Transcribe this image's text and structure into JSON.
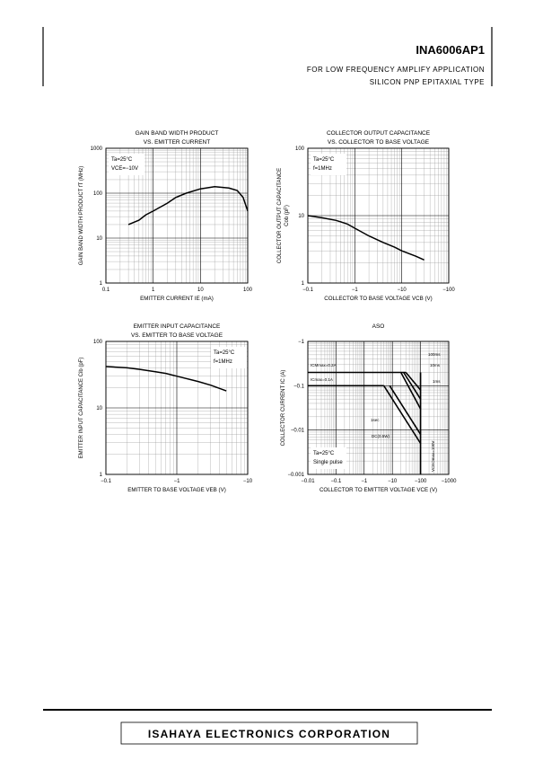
{
  "header": {
    "part_number": "INA6006AP1",
    "line1": "FOR LOW FREQUENCY AMPLIFY APPLICATION",
    "line2": "SILICON PNP EPITAXIAL TYPE"
  },
  "footer": {
    "company": "ISAHAYA ELECTRONICS CORPORATION"
  },
  "chart_data": [
    {
      "type": "line",
      "title": "GAIN BAND WIDTH PRODUCT",
      "subtitle": "VS. EMITTER CURRENT",
      "xlabel": "EMITTER CURRENT  IE (mA)",
      "ylabel": [
        "GAIN BAND WIDTH PRODUCT  fT (MHz)"
      ],
      "xscale": "log",
      "yscale": "log",
      "grid": true,
      "xlim": [
        0.1,
        100
      ],
      "xticks": [
        0.1,
        1,
        10,
        100
      ],
      "ylim": [
        1,
        1000
      ],
      "yticks": [
        1,
        10,
        100,
        1000
      ],
      "annotations": [
        "Ta=25°C",
        "VCE=−10V"
      ],
      "annotation_corner": "top-left",
      "series": [
        {
          "color": "#000000",
          "x": [
            0.3,
            0.5,
            0.7,
            1,
            2,
            3,
            5,
            10,
            20,
            40,
            60,
            80,
            100
          ],
          "values": [
            20,
            25,
            33,
            40,
            60,
            80,
            100,
            125,
            140,
            130,
            115,
            80,
            40
          ]
        }
      ]
    },
    {
      "type": "line",
      "title": "COLLECTOR OUTPUT CAPACITANCE",
      "subtitle": "VS. COLLECTOR TO BASE VOLTAGE",
      "xlabel": "COLLECTOR TO BASE VOLTAGE  VCB (V)",
      "ylabel": [
        "COLLECTOR OUTPUT CAPACITANCE",
        "Cob (pF)"
      ],
      "xscale": "log",
      "yscale": "log",
      "grid": true,
      "xlim": [
        -0.1,
        -100
      ],
      "xticks": [
        {
          "value": -0.1,
          "label": "−0.1"
        },
        {
          "value": -1,
          "label": "−1"
        },
        {
          "value": -10,
          "label": "−10"
        },
        {
          "value": -100,
          "label": "−100"
        }
      ],
      "ylim": [
        1,
        100
      ],
      "yticks": [
        1,
        10,
        100
      ],
      "annotations": [
        "Ta=25°C",
        "f=1MHz"
      ],
      "annotation_corner": "top-left",
      "series": [
        {
          "color": "#000000",
          "x": [
            -0.1,
            -0.2,
            -0.4,
            -0.7,
            -1,
            -2,
            -4,
            -7,
            -10,
            -20,
            -30
          ],
          "values": [
            10,
            9.3,
            8.5,
            7.5,
            6.5,
            5,
            4,
            3.4,
            3,
            2.5,
            2.2
          ]
        }
      ]
    },
    {
      "type": "line",
      "title": "EMITTER INPUT CAPACITANCE",
      "subtitle": "VS. EMITTER TO BASE VOLTAGE",
      "xlabel": "EMITTER TO BASE VOLTAGE  VEB (V)",
      "ylabel": [
        "EMITTER INPUT CAPACITANCE  Cib (pF)"
      ],
      "xscale": "log",
      "yscale": "log",
      "grid": true,
      "xlim": [
        -0.1,
        -10
      ],
      "xticks": [
        {
          "value": -0.1,
          "label": "−0.1"
        },
        {
          "value": -1,
          "label": "−1"
        },
        {
          "value": -10,
          "label": "−10"
        }
      ],
      "ylim": [
        1,
        100
      ],
      "yticks": [
        1,
        10,
        100
      ],
      "annotations": [
        "Ta=25°C",
        "f=1MHz"
      ],
      "annotation_corner": "top-right",
      "series": [
        {
          "color": "#000000",
          "x": [
            -0.1,
            -0.2,
            -0.3,
            -0.5,
            -0.7,
            -1,
            -2,
            -3,
            -5
          ],
          "values": [
            42,
            40,
            38,
            35,
            33,
            30,
            25,
            22,
            18
          ]
        }
      ]
    },
    {
      "type": "line",
      "title": "ASO",
      "xlabel": "COLLECTOR TO EMITTER VOLTAGE  VCE (V)",
      "ylabel": [
        "COLLECTOR CURRENT  IC (A)"
      ],
      "xscale": "log",
      "yscale": "log",
      "grid": true,
      "xlim": [
        -0.01,
        -1000
      ],
      "xticks": [
        {
          "value": -0.01,
          "label": "−0.01"
        },
        {
          "value": -0.1,
          "label": "−0.1"
        },
        {
          "value": -1,
          "label": "−1"
        },
        {
          "value": -10,
          "label": "−10"
        },
        {
          "value": -100,
          "label": "−100"
        },
        {
          "value": -1000,
          "label": "−1000"
        }
      ],
      "ylim": [
        -0.001,
        -1
      ],
      "yticks": [
        {
          "value": -0.001,
          "label": "−0.001"
        },
        {
          "value": -0.01,
          "label": "−0.01"
        },
        {
          "value": -0.1,
          "label": "−0.1"
        },
        {
          "value": -1,
          "label": "−1"
        }
      ],
      "annotations": [
        "Ta=25°C",
        "Single pulse"
      ],
      "annotation_corner": "bottom-left",
      "series": [
        {
          "name": "ICMmax=0.2A",
          "color": "#000000",
          "x": [
            -0.01,
            -30
          ],
          "values": [
            -0.2,
            -0.2
          ]
        },
        {
          "name": "ICmax=0.1A",
          "color": "#000000",
          "x": [
            -0.01,
            -5
          ],
          "values": [
            -0.1,
            -0.1
          ]
        },
        {
          "name": "100ms",
          "color": "#000000",
          "x": [
            -20,
            -100
          ],
          "values": [
            -0.2,
            -0.03
          ]
        },
        {
          "name": "10ms",
          "color": "#000000",
          "x": [
            -25,
            -100
          ],
          "values": [
            -0.2,
            -0.05
          ]
        },
        {
          "name": "1ms",
          "color": "#000000",
          "x": [
            -30,
            -100
          ],
          "values": [
            -0.2,
            -0.08
          ]
        },
        {
          "name": "1sec",
          "color": "#000000",
          "x": [
            -8,
            -100
          ],
          "values": [
            -0.1,
            -0.008
          ]
        },
        {
          "name": "DC(0.5W)",
          "color": "#000000",
          "x": [
            -5,
            -100
          ],
          "values": [
            -0.1,
            -0.005
          ]
        },
        {
          "name": "VCEOmax=100V",
          "color": "#000000",
          "x": [
            -100,
            -100
          ],
          "values": [
            -0.2,
            -0.001
          ]
        }
      ]
    }
  ]
}
